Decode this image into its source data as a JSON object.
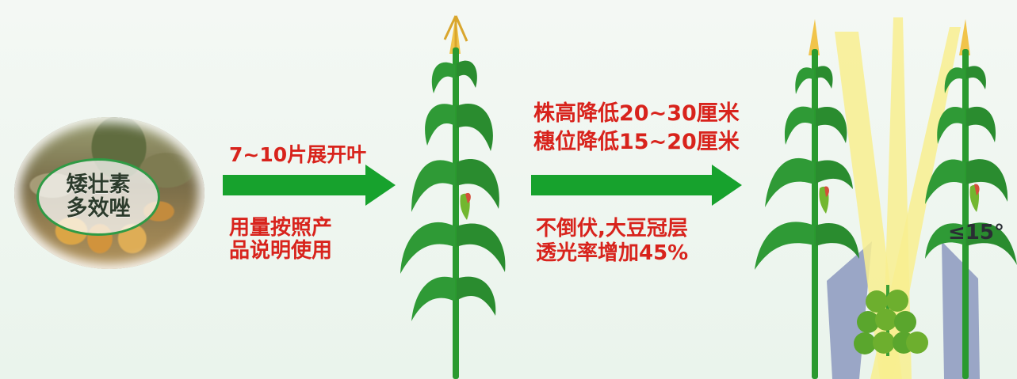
{
  "left_panel": {
    "badge_lines": [
      "矮壮素",
      "多效唑"
    ]
  },
  "step1": {
    "top_text": "7~10片展开叶",
    "bottom_lines": [
      "用量按照产",
      "品说明使用"
    ]
  },
  "step2": {
    "top_lines": [
      "株高降低20~30厘米",
      "穗位降低15~20厘米"
    ],
    "bottom_lines": [
      "不倒伏,大豆冠层",
      "透光率增加45%"
    ]
  },
  "result": {
    "angle_label": "≤15°"
  },
  "colors": {
    "green_arrow": "#17a22d",
    "red_text": "#d8231c",
    "leaf": "#2a9a2f",
    "light_beam": "#f8ef8f",
    "shadow": "#9aa6c6"
  },
  "icons": [
    "corn-plant-icon",
    "soybean-plant-icon",
    "light-beam-icon"
  ]
}
